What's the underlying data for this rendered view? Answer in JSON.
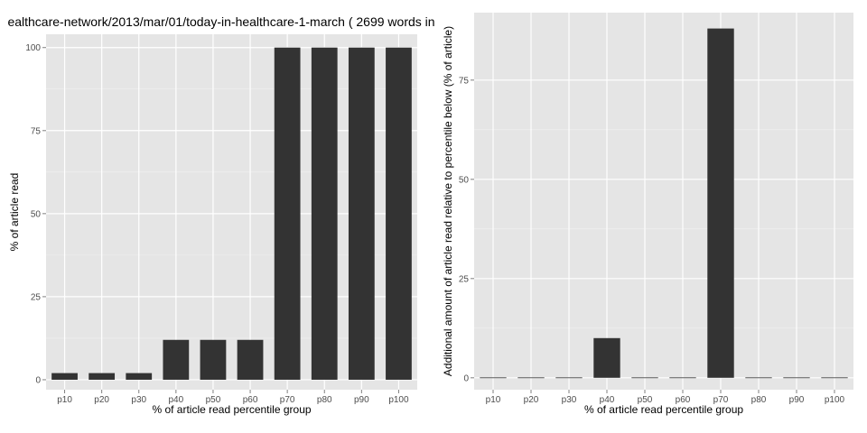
{
  "chart_data": [
    {
      "type": "bar",
      "title": "ealthcare-network/2013/mar/01/today-in-healthcare-1-march ( 2699 words in",
      "xlabel": "% of article read percentile group",
      "ylabel": "% of article read",
      "categories": [
        "p10",
        "p20",
        "p30",
        "p40",
        "p50",
        "p60",
        "p70",
        "p80",
        "p90",
        "p100"
      ],
      "values": [
        2,
        2,
        2,
        12,
        12,
        12,
        100,
        100,
        100,
        100
      ],
      "ylim": [
        -3,
        104
      ],
      "yticks": [
        0,
        25,
        50,
        75,
        100
      ],
      "grid": true,
      "bar_color": "#333333",
      "panel_color": "#e5e5e5"
    },
    {
      "type": "bar",
      "title": "",
      "xlabel": "% of article read percentile group",
      "ylabel": "Additional amount of article read relative to percentile below (% of article)",
      "categories": [
        "p10",
        "p20",
        "p30",
        "p40",
        "p50",
        "p60",
        "p70",
        "p80",
        "p90",
        "p100"
      ],
      "values": [
        0,
        0,
        0,
        10,
        0,
        0,
        88,
        0,
        0,
        0
      ],
      "ylim": [
        -3,
        92
      ],
      "yticks": [
        0,
        25,
        50,
        75
      ],
      "grid": true,
      "bar_color": "#333333",
      "panel_color": "#e5e5e5"
    }
  ]
}
